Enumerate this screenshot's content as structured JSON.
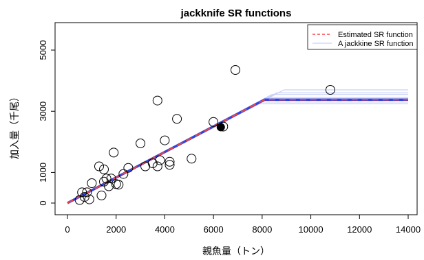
{
  "chart_data": {
    "type": "scatter",
    "title": "jackknife SR functions",
    "xlabel": "親魚量（トン）",
    "ylabel": "加入量（千尾）",
    "xlim": [
      0,
      14000
    ],
    "ylim": [
      0,
      5000
    ],
    "x_ticks": [
      0,
      2000,
      4000,
      6000,
      8000,
      10000,
      12000,
      14000
    ],
    "y_ticks": [
      0,
      1000,
      3000,
      5000
    ],
    "grid": false,
    "legend_position": "top-right",
    "legend": [
      {
        "label": "Estimated SR function",
        "color": "#ff4444",
        "style": "dashed"
      },
      {
        "label": "A jackkine SR function",
        "color": "#c8d0f8",
        "style": "solid"
      }
    ],
    "points": [
      {
        "x": 500,
        "y": 100
      },
      {
        "x": 600,
        "y": 350
      },
      {
        "x": 800,
        "y": 350
      },
      {
        "x": 900,
        "y": 120
      },
      {
        "x": 700,
        "y": 200
      },
      {
        "x": 1000,
        "y": 650
      },
      {
        "x": 1300,
        "y": 1200
      },
      {
        "x": 1400,
        "y": 250
      },
      {
        "x": 1500,
        "y": 700
      },
      {
        "x": 1500,
        "y": 1100
      },
      {
        "x": 1600,
        "y": 800
      },
      {
        "x": 1700,
        "y": 550
      },
      {
        "x": 1800,
        "y": 800
      },
      {
        "x": 1900,
        "y": 1650
      },
      {
        "x": 2000,
        "y": 620
      },
      {
        "x": 2100,
        "y": 600
      },
      {
        "x": 2300,
        "y": 950
      },
      {
        "x": 2500,
        "y": 1150
      },
      {
        "x": 3000,
        "y": 1950
      },
      {
        "x": 3200,
        "y": 1200
      },
      {
        "x": 3500,
        "y": 1300
      },
      {
        "x": 3700,
        "y": 3350
      },
      {
        "x": 3700,
        "y": 1200
      },
      {
        "x": 3800,
        "y": 1400
      },
      {
        "x": 4000,
        "y": 2050
      },
      {
        "x": 4200,
        "y": 1250
      },
      {
        "x": 4200,
        "y": 1350
      },
      {
        "x": 4500,
        "y": 2750
      },
      {
        "x": 5100,
        "y": 1450
      },
      {
        "x": 6000,
        "y": 2650
      },
      {
        "x": 6400,
        "y": 2500
      },
      {
        "x": 6900,
        "y": 4350
      },
      {
        "x": 10800,
        "y": 3700
      }
    ],
    "highlight_point": {
      "x": 6300,
      "y": 2480
    },
    "estimated_sr": {
      "x": [
        0,
        8100,
        14000
      ],
      "y": [
        0,
        3380,
        3380
      ]
    },
    "jackknife_sr": [
      {
        "x": [
          0,
          8000,
          14000
        ],
        "y": [
          0,
          3300,
          3300
        ]
      },
      {
        "x": [
          0,
          8200,
          14000
        ],
        "y": [
          0,
          3450,
          3450
        ]
      },
      {
        "x": [
          0,
          8400,
          14000
        ],
        "y": [
          0,
          3550,
          3550
        ]
      },
      {
        "x": [
          0,
          8600,
          14000
        ],
        "y": [
          0,
          3600,
          3600
        ]
      },
      {
        "x": [
          0,
          8900,
          14000
        ],
        "y": [
          0,
          3700,
          3700
        ]
      },
      {
        "x": [
          0,
          7900,
          14000
        ],
        "y": [
          0,
          3250,
          3250
        ]
      },
      {
        "x": [
          0,
          8100,
          14000
        ],
        "y": [
          0,
          3350,
          3350
        ]
      },
      {
        "x": [
          0,
          8050,
          14000
        ],
        "y": [
          0,
          3400,
          3400
        ]
      }
    ]
  }
}
